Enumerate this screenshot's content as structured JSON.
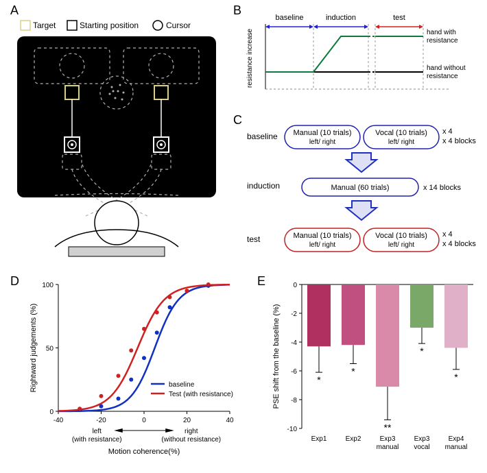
{
  "panelA": {
    "label": "A",
    "legend": {
      "target": "Target",
      "starting": "Starting position",
      "cursor": "Cursor"
    },
    "colors": {
      "background": "#000000",
      "schematic_stroke": "#b0b0b0",
      "target_stroke": "#d8d088",
      "starting_stroke": "#b0b0b0",
      "head_fill": "#ffffff",
      "bench_fill": "#d0d0d0"
    }
  },
  "panelB": {
    "label": "B",
    "phases": {
      "baseline": "baseline",
      "induction": "induction",
      "test": "test"
    },
    "y_axis": "resistance increase",
    "arm_labels": {
      "with": "hand with resistance",
      "without": "hand without resistance"
    },
    "colors": {
      "phase_divider": "#999999",
      "baseline_arrow": "#2020d0",
      "induction_arrow": "#2020d0",
      "test_arrow": "#d02020",
      "curve_with": "#0c7a3c",
      "curve_without": "#000000"
    }
  },
  "panelC": {
    "label": "C",
    "phases": {
      "baseline": "baseline",
      "induction": "induction",
      "test": "test"
    },
    "boxes": {
      "manual10": "Manual (10 trials)",
      "vocal10": "Vocal (10 trials)",
      "leftright": "left/ right",
      "manual60": "Manual (60 trials)"
    },
    "reps": {
      "baseline_x4": "x 4",
      "baseline_blocks": "x 4 blocks",
      "induction_blocks": "x 14 blocks",
      "test_x4": "x 4",
      "test_blocks": "x 4 blocks"
    },
    "colors": {
      "baseline_outline": "#2020b0",
      "test_outline": "#c02020",
      "arrow_fill": "#2030c0"
    }
  },
  "panelD": {
    "label": "D",
    "type": "psychometric",
    "x_axis": "Motion coherence(%)",
    "y_axis": "Rightward judgements (%)",
    "x_ticks": [
      -40,
      -20,
      0,
      20,
      40
    ],
    "y_ticks": [
      0,
      50,
      100
    ],
    "xlim": [
      -40,
      40
    ],
    "ylim": [
      0,
      100
    ],
    "left_annot": "left\n(with resistance)",
    "right_annot": "right\n(without resistance)",
    "legend": {
      "baseline": "baseline",
      "test": "Test (with resistance)"
    },
    "curves": {
      "baseline": {
        "color": "#1030c0",
        "mid": 5,
        "slope": 0.18
      },
      "test": {
        "color": "#d02020",
        "mid": -3,
        "slope": 0.16
      }
    },
    "points": {
      "baseline": [
        [
          -30,
          1
        ],
        [
          -20,
          4
        ],
        [
          -12,
          10
        ],
        [
          -6,
          25
        ],
        [
          0,
          42
        ],
        [
          6,
          62
        ],
        [
          12,
          82
        ],
        [
          20,
          95
        ],
        [
          30,
          99
        ]
      ],
      "test": [
        [
          -30,
          2
        ],
        [
          -20,
          12
        ],
        [
          -12,
          28
        ],
        [
          -6,
          48
        ],
        [
          0,
          65
        ],
        [
          6,
          78
        ],
        [
          12,
          90
        ],
        [
          20,
          95
        ],
        [
          30,
          100
        ]
      ]
    }
  },
  "panelE": {
    "label": "E",
    "type": "bar",
    "y_axis": "PSE shift from the baseline (%)",
    "ylim": [
      -10,
      0
    ],
    "y_ticks": [
      -10,
      -8,
      -6,
      -4,
      -2,
      0
    ],
    "categories": [
      "Exp1",
      "Exp2",
      "Exp3\nmanual",
      "Exp3\nvocal",
      "Exp4\nmanual"
    ],
    "values": [
      -4.3,
      -4.2,
      -7.1,
      -3.0,
      -4.4
    ],
    "errors": [
      1.8,
      1.3,
      2.3,
      1.1,
      1.5
    ],
    "sig": [
      "*",
      "*",
      "**",
      "*",
      "*"
    ],
    "bar_colors": [
      "#b03060",
      "#c05080",
      "#d88aa8",
      "#7aa868",
      "#e0b0c8"
    ],
    "axis_color": "#000000"
  }
}
